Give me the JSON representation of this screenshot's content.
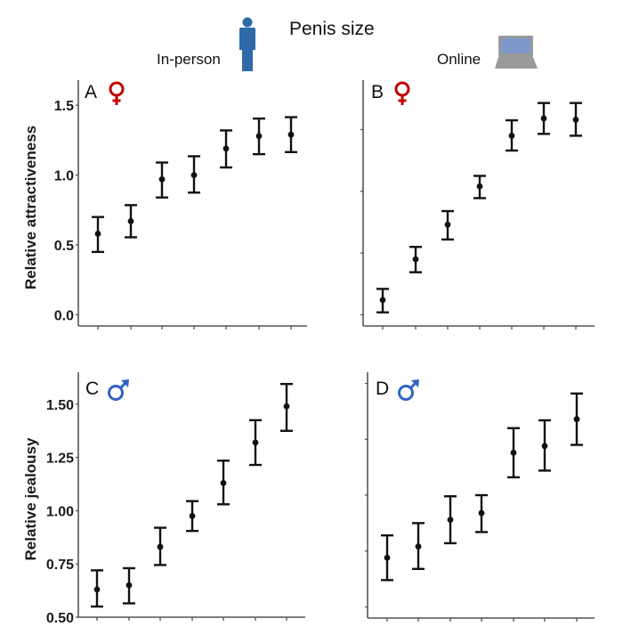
{
  "header": {
    "title": "Penis size",
    "in_person_label": "In-person",
    "online_label": "Online",
    "in_person_icon": "person-icon",
    "online_icon": "laptop-icon"
  },
  "colors": {
    "female_symbol": "#c00000",
    "male_symbol": "#2f63c4",
    "person_icon": "#2e6aa8",
    "laptop_screen": "#7d98c8",
    "laptop_body": "#9a9a9a",
    "points": "#111111"
  },
  "chart_data": [
    {
      "type": "scatter",
      "panel": "A",
      "symbol": "female",
      "symbol_glyph": "♀",
      "condition": "In-person",
      "ylabel": "Relative attractiveness",
      "xlabel": "",
      "x": [
        1,
        2,
        3,
        4,
        5,
        6,
        7
      ],
      "yticks": [
        "0.0",
        "0.5",
        "1.0",
        "1.5"
      ],
      "ytick_values": [
        0.0,
        0.5,
        1.0,
        1.5
      ],
      "ylim": [
        -0.08,
        1.68
      ],
      "series": [
        {
          "name": "mean",
          "values": [
            0.58,
            0.67,
            0.97,
            1.0,
            1.19,
            1.28,
            1.29
          ],
          "lower": [
            0.45,
            0.555,
            0.84,
            0.875,
            1.055,
            1.15,
            1.165
          ],
          "upper": [
            0.7,
            0.785,
            1.09,
            1.135,
            1.32,
            1.405,
            1.415
          ]
        }
      ],
      "grid": false,
      "show_ytick_labels": true
    },
    {
      "type": "scatter",
      "panel": "B",
      "symbol": "female",
      "symbol_glyph": "♀",
      "condition": "Online",
      "ylabel": "",
      "xlabel": "",
      "x": [
        1,
        2,
        3,
        4,
        5,
        6,
        7
      ],
      "yticks": [
        "0.0",
        "0.5",
        "1.0",
        "1.5"
      ],
      "ytick_values": [
        0.0,
        0.5,
        1.0,
        1.5
      ],
      "ylim": [
        -0.09,
        1.9
      ],
      "series": [
        {
          "name": "mean",
          "values": [
            0.12,
            0.45,
            0.73,
            1.04,
            1.45,
            1.59,
            1.58
          ],
          "lower": [
            0.02,
            0.345,
            0.61,
            0.945,
            1.33,
            1.465,
            1.45
          ],
          "upper": [
            0.21,
            0.55,
            0.84,
            1.125,
            1.575,
            1.715,
            1.715
          ]
        }
      ],
      "grid": false,
      "show_ytick_labels": false
    },
    {
      "type": "scatter",
      "panel": "C",
      "symbol": "male",
      "symbol_glyph": "♂",
      "condition": "In-person",
      "ylabel": "Relative jealousy",
      "xlabel": "",
      "x": [
        1,
        2,
        3,
        4,
        5,
        6,
        7
      ],
      "yticks": [
        "0.50",
        "0.75",
        "1.00",
        "1.25",
        "1.50"
      ],
      "ytick_values": [
        0.5,
        0.75,
        1.0,
        1.25,
        1.5
      ],
      "ylim": [
        0.5,
        1.65
      ],
      "series": [
        {
          "name": "mean",
          "values": [
            0.63,
            0.65,
            0.83,
            0.975,
            1.13,
            1.32,
            1.49
          ],
          "lower": [
            0.55,
            0.565,
            0.745,
            0.905,
            1.03,
            1.215,
            1.375
          ],
          "upper": [
            0.72,
            0.73,
            0.92,
            1.045,
            1.235,
            1.425,
            1.595
          ]
        }
      ],
      "grid": false,
      "show_ytick_labels": true
    },
    {
      "type": "scatter",
      "panel": "D",
      "symbol": "male",
      "symbol_glyph": "♂",
      "condition": "Online",
      "ylabel": "",
      "xlabel": "",
      "x": [
        1,
        2,
        3,
        4,
        5,
        6,
        7
      ],
      "yticks": [
        "0.50",
        "0.75",
        "1.00",
        "1.25",
        "1.50"
      ],
      "ytick_values": [
        0.5,
        0.75,
        1.0,
        1.25,
        1.5
      ],
      "ylim": [
        0.45,
        1.55
      ],
      "series": [
        {
          "name": "mean",
          "values": [
            0.72,
            0.77,
            0.89,
            0.92,
            1.19,
            1.22,
            1.34
          ],
          "lower": [
            0.62,
            0.67,
            0.785,
            0.835,
            1.08,
            1.11,
            1.225
          ],
          "upper": [
            0.82,
            0.875,
            0.995,
            1.0,
            1.3,
            1.335,
            1.455
          ]
        }
      ],
      "grid": false,
      "show_ytick_labels": false
    }
  ]
}
